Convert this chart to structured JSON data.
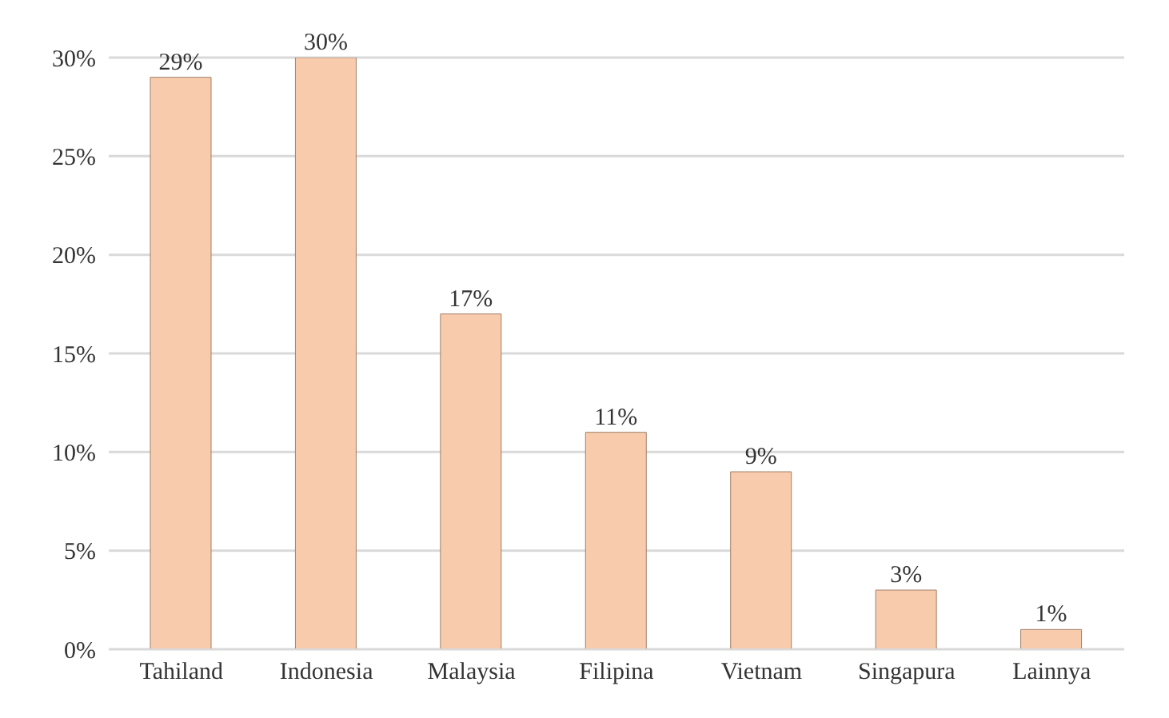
{
  "chart_data": {
    "type": "bar",
    "categories": [
      "Tahiland",
      "Indonesia",
      "Malaysia",
      "Filipina",
      "Vietnam",
      "Singapura",
      "Lainnya"
    ],
    "values": [
      29,
      30,
      17,
      11,
      9,
      3,
      1
    ],
    "color": "#f8cbad",
    "value_labels": [
      "29%",
      "30%",
      "17%",
      "11%",
      "9%",
      "3%",
      "1%"
    ],
    "ylim": [
      0,
      30
    ],
    "yticks": [
      {
        "value": 0,
        "label": "0%"
      },
      {
        "value": 5,
        "label": "5%"
      },
      {
        "value": 10,
        "label": "10%"
      },
      {
        "value": 15,
        "label": "15%"
      },
      {
        "value": 20,
        "label": "20%"
      },
      {
        "value": 25,
        "label": "25%"
      },
      {
        "value": 30,
        "label": "30%"
      }
    ],
    "grid": "y",
    "legend": false
  }
}
